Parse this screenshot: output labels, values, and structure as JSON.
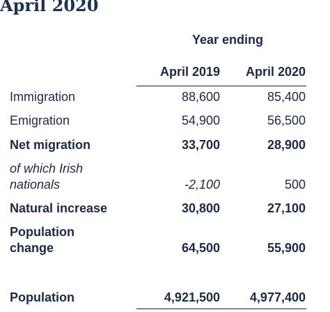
{
  "title": "April 2020",
  "header": {
    "group_label": "Year ending",
    "columns": [
      "April 2019",
      "April 2020"
    ]
  },
  "rows": [
    {
      "label": "Immigration",
      "values": [
        "88,600",
        "85,400"
      ],
      "style": "normal"
    },
    {
      "label": "Emigration",
      "values": [
        "54,900",
        "56,500"
      ],
      "style": "normal"
    },
    {
      "label": "Net migration",
      "values": [
        "33,700",
        "28,900"
      ],
      "style": "bold"
    },
    {
      "label_lines": [
        "of which Irish",
        "nationals"
      ],
      "values": [
        "-2,100",
        "500"
      ],
      "style": "italic"
    },
    {
      "label": "Natural increase",
      "values": [
        "30,800",
        "27,100"
      ],
      "style": "bold"
    },
    {
      "label_lines": [
        "Population",
        "change"
      ],
      "values": [
        "64,500",
        "55,900"
      ],
      "style": "bold"
    },
    {
      "label": "Population",
      "values": [
        "4,921,500",
        "4,977,400"
      ],
      "style": "bold"
    }
  ]
}
